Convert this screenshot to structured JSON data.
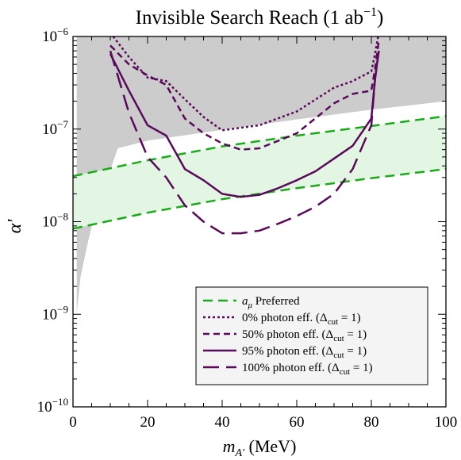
{
  "chart_data": {
    "type": "line",
    "title": "Invisible Search Reach (1 ab",
    "title_superscript": "−1",
    "title_close": ")",
    "xlabel": {
      "main": "m",
      "sub": "A'",
      "rest": " (MeV)"
    },
    "ylabel": "α'",
    "xlim": [
      0,
      100
    ],
    "ylim": [
      1e-10,
      1e-06
    ],
    "yscale": "log",
    "xticks": [
      0,
      20,
      40,
      60,
      80,
      100
    ],
    "yticks": [
      {
        "value": 1e-10,
        "base": "10",
        "exp": "−10"
      },
      {
        "value": 1e-09,
        "base": "10",
        "exp": "−9"
      },
      {
        "value": 1e-08,
        "base": "10",
        "exp": "−8"
      },
      {
        "value": 1e-07,
        "base": "10",
        "exp": "−7"
      },
      {
        "value": 1e-06,
        "base": "10",
        "exp": "−6"
      }
    ],
    "excluded_region": {
      "color": "#cccccc",
      "lower_boundary": [
        [
          1,
          1e-09
        ],
        [
          2,
          2.5e-09
        ],
        [
          4,
          6e-09
        ],
        [
          6,
          1.3e-08
        ],
        [
          8,
          2.3e-08
        ],
        [
          10,
          3.6e-08
        ],
        [
          12,
          6.2e-08
        ],
        [
          20,
          7.5e-08
        ],
        [
          40,
          9.8e-08
        ],
        [
          60,
          1.27e-07
        ],
        [
          80,
          1.62e-07
        ],
        [
          100,
          2e-07
        ]
      ]
    },
    "preferred_band": {
      "color": "#e3f5e3",
      "upper": [
        [
          0,
          3.1e-08
        ],
        [
          20,
          4.6e-08
        ],
        [
          40,
          6.5e-08
        ],
        [
          60,
          8.5e-08
        ],
        [
          80,
          1.08e-07
        ],
        [
          100,
          1.38e-07
        ]
      ],
      "lower": [
        [
          0,
          8.4e-09
        ],
        [
          20,
          1.25e-08
        ],
        [
          40,
          1.75e-08
        ],
        [
          60,
          2.3e-08
        ],
        [
          80,
          2.95e-08
        ],
        [
          100,
          3.7e-08
        ]
      ]
    },
    "series": [
      {
        "name": "a_μ Preferred",
        "color": "#1aaa1a",
        "dash": "12,7",
        "width": 2.5,
        "x": [
          0,
          20,
          40,
          60,
          80,
          100
        ],
        "y": [
          3.1e-08,
          4.6e-08,
          6.5e-08,
          8.5e-08,
          1.08e-07,
          1.38e-07
        ]
      },
      {
        "name": "a_μ Preferred (lower)",
        "color": "#1aaa1a",
        "dash": "12,7",
        "width": 2.5,
        "x": [
          0,
          20,
          40,
          60,
          80,
          100
        ],
        "y": [
          8.4e-09,
          1.25e-08,
          1.75e-08,
          2.3e-08,
          2.95e-08,
          3.7e-08
        ]
      },
      {
        "name": "0% photon eff. (Δcut = 1)",
        "color": "#5a0a5a",
        "dash": "3,3",
        "width": 2.5,
        "x": [
          10,
          15,
          20,
          25,
          30,
          35,
          40,
          50,
          60,
          70,
          75,
          80,
          81,
          82
        ],
        "y": [
          1.1e-06,
          6e-07,
          3.6e-07,
          3.3e-07,
          2.1e-07,
          1.35e-07,
          9.7e-08,
          1.1e-07,
          1.55e-07,
          2.8e-07,
          3.3e-07,
          4.2e-07,
          6.5e-07,
          1.1e-06
        ]
      },
      {
        "name": "50% photon eff. (Δcut = 1)",
        "color": "#5a0a5a",
        "dash": "8,5",
        "width": 2.5,
        "x": [
          10,
          15,
          20,
          25,
          30,
          35,
          40,
          45,
          50,
          60,
          70,
          75,
          80,
          81,
          82
        ],
        "y": [
          8e-07,
          5e-07,
          3.8e-07,
          3e-07,
          1.3e-07,
          9e-08,
          7e-08,
          6e-08,
          6.2e-08,
          9e-08,
          1.9e-07,
          2.4e-07,
          2.6e-07,
          4.5e-07,
          9e-07
        ]
      },
      {
        "name": "95% photon eff. (Δcut = 1)",
        "color": "#5a0a5a",
        "dash": "none",
        "width": 2.5,
        "x": [
          10,
          15,
          20,
          25,
          30,
          35,
          40,
          45,
          50,
          55,
          60,
          65,
          70,
          75,
          80,
          81,
          82
        ],
        "y": [
          6.5e-07,
          2.6e-07,
          1.1e-07,
          8.5e-08,
          3.7e-08,
          2.8e-08,
          2e-08,
          1.85e-08,
          1.95e-08,
          2.3e-08,
          2.8e-08,
          3.5e-08,
          4.8e-08,
          6.6e-08,
          1.3e-07,
          3.5e-07,
          7e-07
        ]
      },
      {
        "name": "100% photon eff. (Δcut = 1)",
        "color": "#5a0a5a",
        "dash": "20,9",
        "width": 2.5,
        "x": [
          10,
          15,
          20,
          25,
          30,
          35,
          40,
          45,
          50,
          55,
          60,
          65,
          70,
          75,
          80,
          81,
          82
        ],
        "y": [
          7e-07,
          1.5e-07,
          5e-08,
          3e-08,
          1.5e-08,
          1e-08,
          7.5e-09,
          7.5e-09,
          8e-09,
          9.5e-09,
          1.15e-08,
          1.45e-08,
          2e-08,
          3.7e-08,
          1.1e-07,
          3.5e-07,
          7e-07
        ]
      }
    ],
    "legend": {
      "placement": "bottom-right",
      "background": "#f4f4f4",
      "entries": [
        {
          "series_index": 0,
          "main": "a",
          "sub": "μ",
          "rest": " Preferred"
        },
        {
          "series_index": 2,
          "main": "0% photon eff. (Δ",
          "sub": "cut",
          "rest": " = 1)"
        },
        {
          "series_index": 3,
          "main": "50% photon eff. (Δ",
          "sub": "cut",
          "rest": " = 1)"
        },
        {
          "series_index": 4,
          "main": "95% photon eff. (Δ",
          "sub": "cut",
          "rest": " = 1)"
        },
        {
          "series_index": 5,
          "main": "100% photon eff. (Δ",
          "sub": "cut",
          "rest": " = 1)"
        }
      ]
    }
  }
}
